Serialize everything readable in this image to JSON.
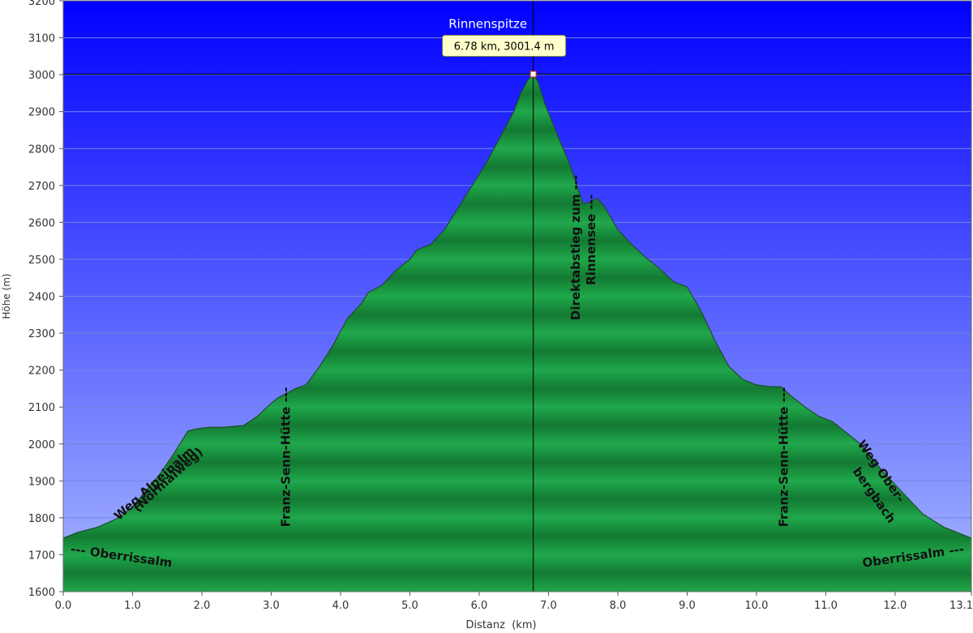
{
  "chart_data": {
    "type": "area",
    "title": "",
    "xlabel": "Distanz  (km)",
    "ylabel": "Höhe (m)",
    "xlim": [
      0,
      13.1
    ],
    "ylim": [
      1600,
      3200
    ],
    "grid": true,
    "x_ticks": [
      "0.0",
      "1.0",
      "2.0",
      "3.0",
      "4.0",
      "5.0",
      "6.0",
      "7.0",
      "8.0",
      "9.0",
      "10.0",
      "11.0",
      "12.0",
      "13.1"
    ],
    "x_tick_values": [
      0,
      1,
      2,
      3,
      4,
      5,
      6,
      7,
      8,
      9,
      10,
      11,
      12,
      13.1
    ],
    "y_ticks": [
      "1600",
      "1700",
      "1800",
      "1900",
      "2000",
      "2100",
      "2200",
      "2300",
      "2400",
      "2500",
      "2600",
      "2700",
      "2800",
      "2900",
      "3000",
      "3100",
      "3200"
    ],
    "y_tick_values": [
      1600,
      1700,
      1800,
      1900,
      2000,
      2100,
      2200,
      2300,
      2400,
      2500,
      2600,
      2700,
      2800,
      2900,
      3000,
      3100,
      3200
    ],
    "x": [
      0.0,
      0.2,
      0.5,
      0.8,
      1.0,
      1.2,
      1.4,
      1.6,
      1.8,
      1.9,
      2.1,
      2.3,
      2.6,
      2.8,
      3.0,
      3.1,
      3.25,
      3.35,
      3.5,
      3.7,
      3.9,
      4.1,
      4.3,
      4.4,
      4.6,
      4.8,
      5.0,
      5.1,
      5.3,
      5.5,
      5.7,
      5.9,
      6.1,
      6.3,
      6.5,
      6.6,
      6.7,
      6.78,
      6.85,
      6.95,
      7.1,
      7.3,
      7.5,
      7.6,
      7.7,
      7.8,
      8.0,
      8.2,
      8.4,
      8.6,
      8.8,
      9.0,
      9.2,
      9.4,
      9.6,
      9.8,
      10.0,
      10.2,
      10.35,
      10.5,
      10.7,
      10.9,
      11.1,
      11.3,
      11.5,
      11.8,
      12.1,
      12.4,
      12.7,
      13.1
    ],
    "y": [
      1745,
      1760,
      1775,
      1800,
      1830,
      1875,
      1920,
      1975,
      2035,
      2040,
      2045,
      2045,
      2050,
      2075,
      2110,
      2125,
      2140,
      2150,
      2160,
      2210,
      2270,
      2340,
      2380,
      2410,
      2430,
      2470,
      2500,
      2525,
      2540,
      2580,
      2640,
      2700,
      2760,
      2830,
      2900,
      2950,
      2985,
      3001,
      2980,
      2920,
      2850,
      2760,
      2650,
      2655,
      2665,
      2645,
      2580,
      2540,
      2505,
      2475,
      2440,
      2425,
      2360,
      2280,
      2210,
      2175,
      2160,
      2155,
      2155,
      2130,
      2100,
      2075,
      2060,
      2030,
      2000,
      1930,
      1870,
      1810,
      1775,
      1745
    ],
    "highlight": {
      "name": "Rinnenspitze",
      "label": "6.78 km, 3001.4 m",
      "x": 6.78,
      "y": 3001.4
    },
    "annotations": [
      {
        "text": "Oberrissalm",
        "prefix": "--- ",
        "suffix": "",
        "x": 0.1,
        "y": 1705,
        "rotate": 8,
        "anchor": "start"
      },
      {
        "text": "Weg Alpeinalm",
        "prefix": "",
        "suffix": "",
        "x": 1.35,
        "y": 1885,
        "rotate": -42,
        "anchor": "middle"
      },
      {
        "text": "(Normalweg)",
        "prefix": "",
        "suffix": "",
        "x": 1.55,
        "y": 1895,
        "rotate": -42,
        "anchor": "middle"
      },
      {
        "text": "Franz-Senn-Hütte",
        "prefix": "",
        "suffix": " ---",
        "x": 3.27,
        "y": 1775,
        "rotate": -90,
        "anchor": "start"
      },
      {
        "text": "Direktabstieg zum",
        "prefix": "",
        "suffix": " ---",
        "x": 7.45,
        "y": 2335,
        "rotate": -90,
        "anchor": "start"
      },
      {
        "text": "Rinnensee",
        "prefix": "",
        "suffix": " ---",
        "x": 7.67,
        "y": 2430,
        "rotate": -90,
        "anchor": "start"
      },
      {
        "text": "Franz-Senn-Hütte",
        "prefix": "",
        "suffix": " ---",
        "x": 10.45,
        "y": 1775,
        "rotate": -90,
        "anchor": "start"
      },
      {
        "text": "Weg Ober-",
        "prefix": "",
        "suffix": "",
        "x": 11.75,
        "y": 1920,
        "rotate": 55,
        "anchor": "middle"
      },
      {
        "text": "bergbach",
        "prefix": "",
        "suffix": "",
        "x": 11.65,
        "y": 1855,
        "rotate": 55,
        "anchor": "middle"
      },
      {
        "text": "Oberrissalm",
        "prefix": "",
        "suffix": " ---",
        "x": 13.0,
        "y": 1705,
        "rotate": -8,
        "anchor": "end"
      }
    ],
    "colors": {
      "sky_top": "#0000ff",
      "sky_bottom": "#a8b8ff",
      "area_light": "#1fa84a",
      "area_dark": "#137a33",
      "area_outline": "#1d4d2a",
      "grid": "#6f86e0",
      "marker_line": "#000000",
      "tooltip_bg": "#ffffcc",
      "tooltip_border": "#8a8a4a"
    }
  }
}
